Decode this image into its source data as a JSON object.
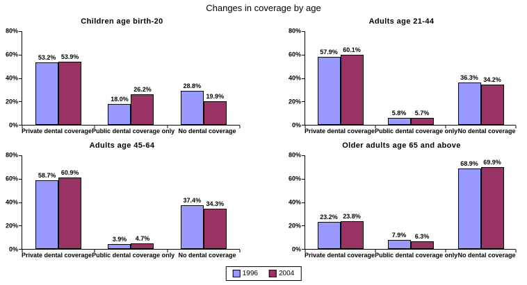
{
  "page_title": "Changes in coverage by age",
  "colors": {
    "series_1996": "#9999FF",
    "series_2004": "#993366",
    "bar_border": "#000000",
    "axis": "#000000",
    "background": "#FFFFFF"
  },
  "legend": {
    "position": "bottom-center",
    "items": [
      {
        "label": "1996",
        "color": "#9999FF"
      },
      {
        "label": "2004",
        "color": "#993366"
      }
    ]
  },
  "axis": {
    "ylim": [
      0,
      80
    ],
    "ytick_step": 20,
    "ytick_labels": [
      "0%",
      "20%",
      "40%",
      "60%",
      "80%"
    ],
    "grid": false
  },
  "chart_data": [
    {
      "type": "bar",
      "title": "Children age birth-20",
      "categories": [
        "Private dental coverage",
        "Public dental coverage only",
        "No dental coverage"
      ],
      "ylim": [
        0,
        80
      ],
      "series": [
        {
          "name": "1996",
          "values": [
            53.2,
            18.0,
            28.8
          ],
          "value_labels": [
            "53.2%",
            "18.0%",
            "28.8%"
          ]
        },
        {
          "name": "2004",
          "values": [
            53.9,
            26.2,
            19.9
          ],
          "value_labels": [
            "53.9%",
            "26.2%",
            "19.9%"
          ]
        }
      ]
    },
    {
      "type": "bar",
      "title": "Adults age 21-44",
      "categories": [
        "Private dental coverage",
        "Public dental coverage only",
        "No dental coverage"
      ],
      "ylim": [
        0,
        80
      ],
      "series": [
        {
          "name": "1996",
          "values": [
            57.9,
            5.8,
            36.3
          ],
          "value_labels": [
            "57.9%",
            "5.8%",
            "36.3%"
          ]
        },
        {
          "name": "2004",
          "values": [
            60.1,
            5.7,
            34.2
          ],
          "value_labels": [
            "60.1%",
            "5.7%",
            "34.2%"
          ]
        }
      ]
    },
    {
      "type": "bar",
      "title": "Adults age 45-64",
      "categories": [
        "Private dental coverage",
        "Public dental coverage only",
        "No dental coverage"
      ],
      "ylim": [
        0,
        80
      ],
      "series": [
        {
          "name": "1996",
          "values": [
            58.7,
            3.9,
            37.4
          ],
          "value_labels": [
            "58.7%",
            "3.9%",
            "37.4%"
          ]
        },
        {
          "name": "2004",
          "values": [
            60.9,
            4.7,
            34.3
          ],
          "value_labels": [
            "60.9%",
            "4.7%",
            "34.3%"
          ]
        }
      ]
    },
    {
      "type": "bar",
      "title": "Older adults age 65 and above",
      "categories": [
        "Private dental coverage",
        "Public dental coverage only",
        "No dental coverage"
      ],
      "ylim": [
        0,
        80
      ],
      "series": [
        {
          "name": "1996",
          "values": [
            23.2,
            7.9,
            68.9
          ],
          "value_labels": [
            "23.2%",
            "7.9%",
            "68.9%"
          ]
        },
        {
          "name": "2004",
          "values": [
            23.8,
            6.3,
            69.9
          ],
          "value_labels": [
            "23.8%",
            "6.3%",
            "69.9%"
          ]
        }
      ]
    }
  ]
}
